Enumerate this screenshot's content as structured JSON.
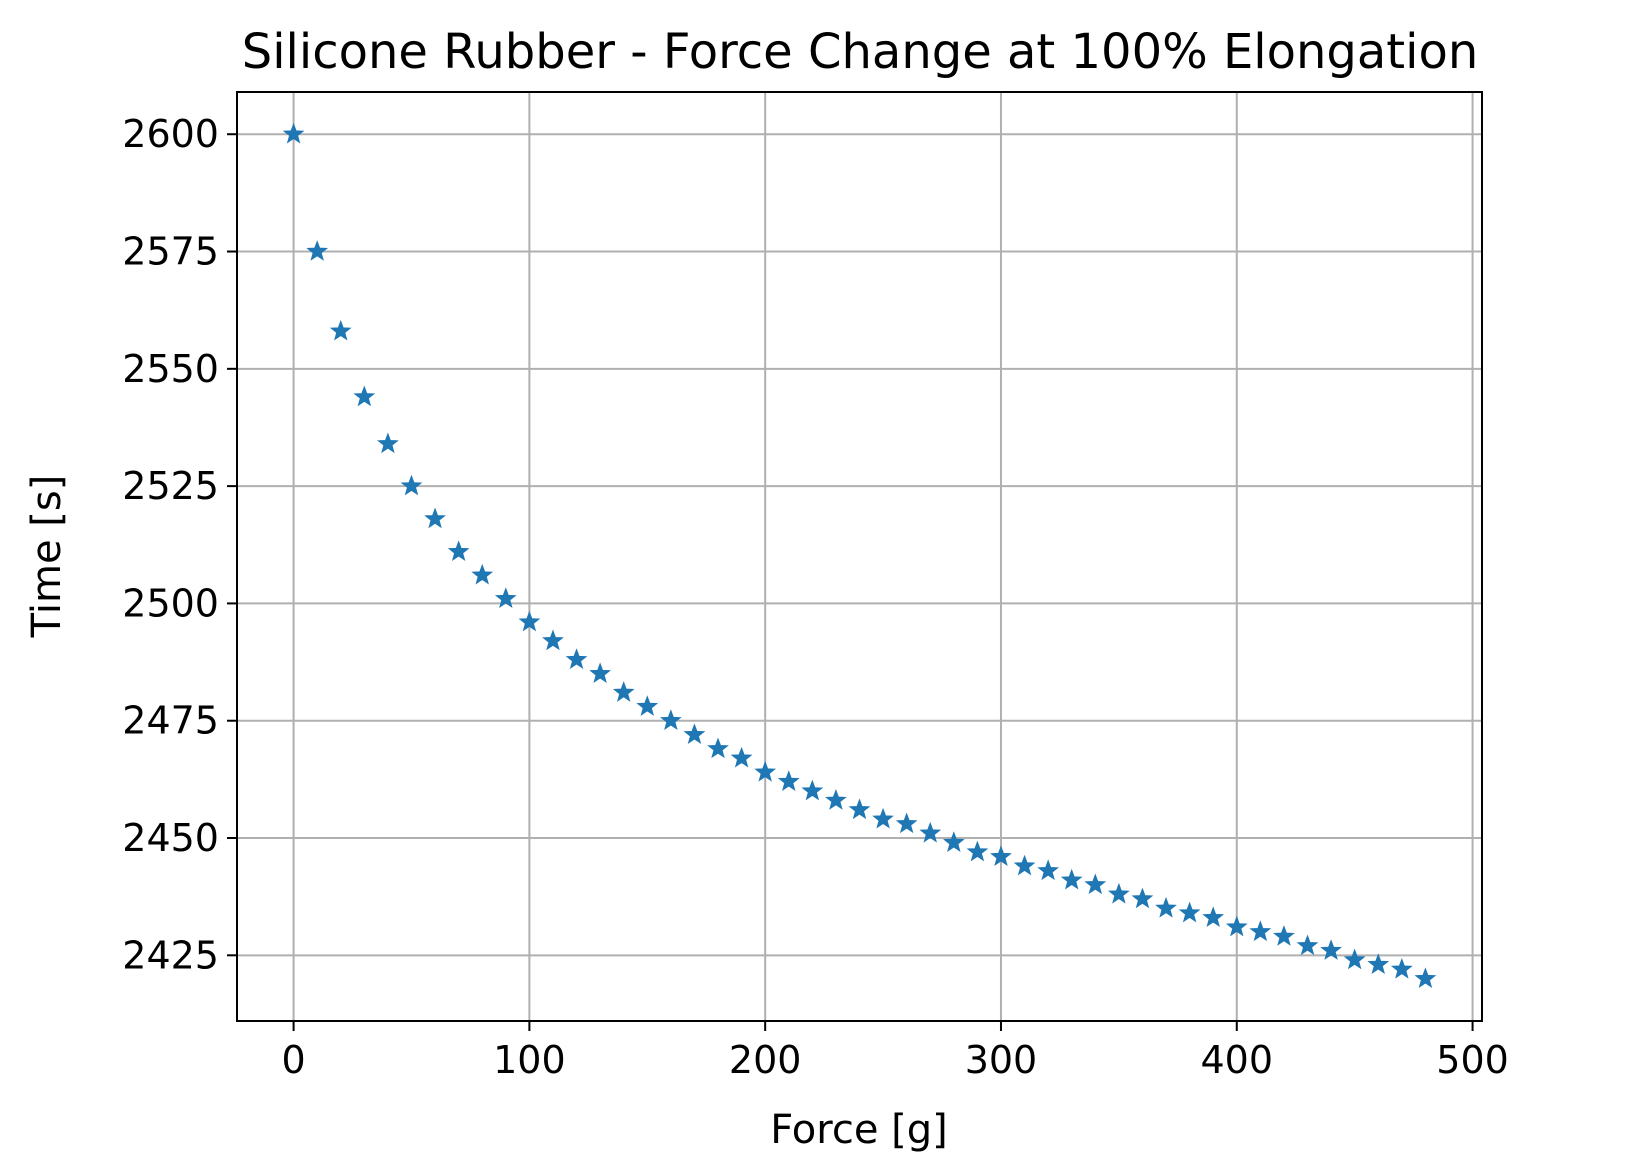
{
  "chart_data": {
    "type": "scatter",
    "title": "Silicone Rubber - Force Change at 100% Elongation",
    "xlabel": "Force [g]",
    "ylabel": "Time [s]",
    "xlim": [
      -24,
      504
    ],
    "ylim": [
      2411,
      2609
    ],
    "xticks": [
      0,
      100,
      200,
      300,
      400,
      500
    ],
    "yticks": [
      2425,
      2450,
      2475,
      2500,
      2525,
      2550,
      2575,
      2600
    ],
    "grid": true,
    "marker": "star",
    "color": "#1f77b4",
    "series": [
      {
        "x": [
          0,
          10,
          20,
          30,
          40,
          50,
          60,
          70,
          80,
          90,
          100,
          110,
          120,
          130,
          140,
          150,
          160,
          170,
          180,
          190,
          200,
          210,
          220,
          230,
          240,
          250,
          260,
          270,
          280,
          290,
          300,
          310,
          320,
          330,
          340,
          350,
          360,
          370,
          380,
          390,
          400,
          410,
          420,
          430,
          440,
          450,
          460,
          470,
          480
        ],
        "y": [
          2600,
          2575,
          2558,
          2544,
          2534,
          2525,
          2518,
          2511,
          2506,
          2501,
          2496,
          2492,
          2488,
          2485,
          2481,
          2478,
          2475,
          2472,
          2469,
          2467,
          2464,
          2462,
          2460,
          2458,
          2456,
          2454,
          2453,
          2451,
          2449,
          2447,
          2446,
          2444,
          2443,
          2441,
          2440,
          2438,
          2437,
          2435,
          2434,
          2433,
          2431,
          2430,
          2429,
          2427,
          2426,
          2424,
          2423,
          2422,
          2420
        ]
      }
    ]
  }
}
